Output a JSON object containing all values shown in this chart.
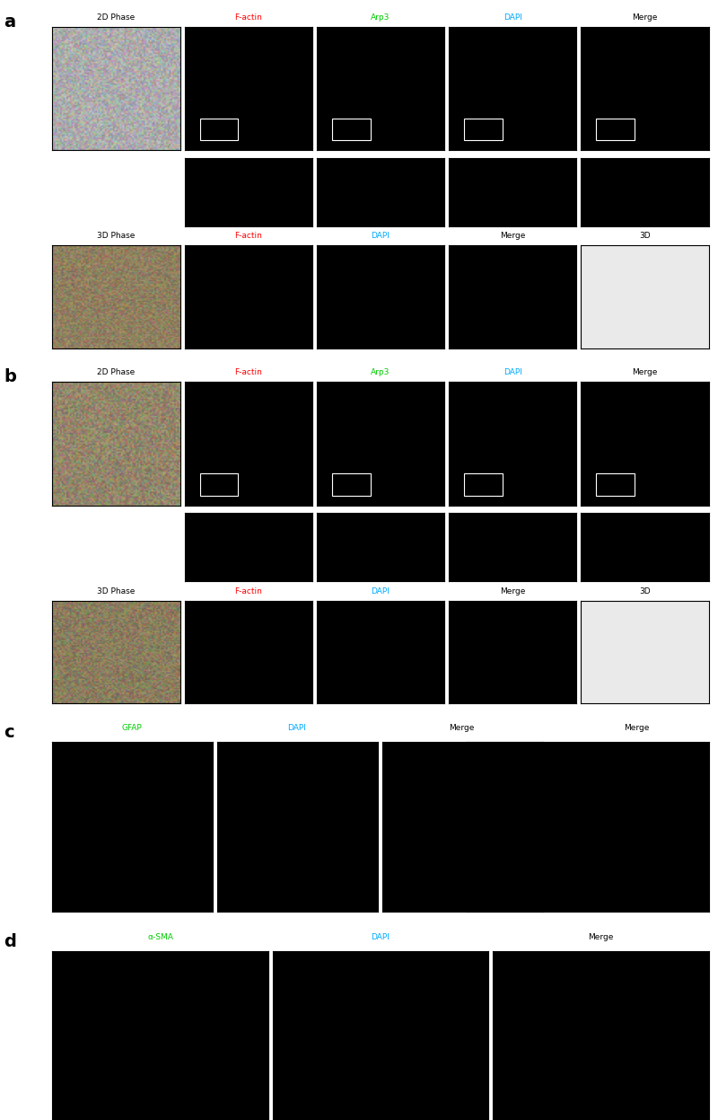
{
  "fig_width": 8.0,
  "fig_height": 12.47,
  "background_color": "#ffffff",
  "panel_a": {
    "label": "a",
    "row1_labels": [
      "2D Phase",
      "F-actin",
      "Arp3",
      "DAPI",
      "Merge"
    ],
    "row1_label_colors": [
      "#000000",
      "#ff0000",
      "#00cc00",
      "#00aaff",
      "#000000"
    ],
    "row2_labels": [
      "3D Phase",
      "F-actin",
      "DAPI",
      "Merge",
      "3D"
    ],
    "row2_label_colors": [
      "#000000",
      "#ff0000",
      "#00aaff",
      "#000000",
      "#000000"
    ],
    "row1_bg": [
      "#c8c8c8",
      "#000000",
      "#000000",
      "#000000",
      "#000000"
    ],
    "row1_content_colors": [
      "#a0a0a0",
      "#cc0000",
      "#00aa00",
      "#00008b",
      "#332200"
    ],
    "row2_bg": [
      "#b8a070",
      "#000000",
      "#000000",
      "#000000",
      "#ffffff"
    ],
    "row2_content_colors": [
      "#a08050",
      "#cc0000",
      "#00008b",
      "#332200",
      "#f5f0e8"
    ],
    "inset_row_bg": [
      "#000000",
      "#000000",
      "#000000",
      "#000000"
    ]
  },
  "panel_b": {
    "label": "b",
    "row1_labels": [
      "2D Phase",
      "F-actin",
      "Arp3",
      "DAPI",
      "Merge"
    ],
    "row1_label_colors": [
      "#000000",
      "#ff0000",
      "#00cc00",
      "#00aaff",
      "#000000"
    ],
    "row2_labels": [
      "3D Phase",
      "F-actin",
      "DAPI",
      "Merge",
      "3D"
    ],
    "row2_label_colors": [
      "#000000",
      "#ff0000",
      "#00aaff",
      "#000000",
      "#000000"
    ],
    "row1_bg": [
      "#c0a878",
      "#000000",
      "#000000",
      "#000000",
      "#000000"
    ],
    "row2_bg": [
      "#b8a070",
      "#000000",
      "#000000",
      "#000000",
      "#ffffff"
    ]
  },
  "panel_c": {
    "label": "c",
    "labels": [
      "GFAP",
      "DAPI",
      "Merge",
      "Merge"
    ],
    "label_colors": [
      "#00cc00",
      "#00aaff",
      "#000000",
      "#000000"
    ],
    "bg": [
      "#000000",
      "#000000",
      "#000000",
      "#000000"
    ]
  },
  "panel_d": {
    "label": "d",
    "labels": [
      "α-SMA",
      "DAPI",
      "Merge"
    ],
    "label_colors": [
      "#00cc00",
      "#00aaff",
      "#000000"
    ],
    "bg": [
      "#000000",
      "#000000",
      "#000000"
    ]
  }
}
